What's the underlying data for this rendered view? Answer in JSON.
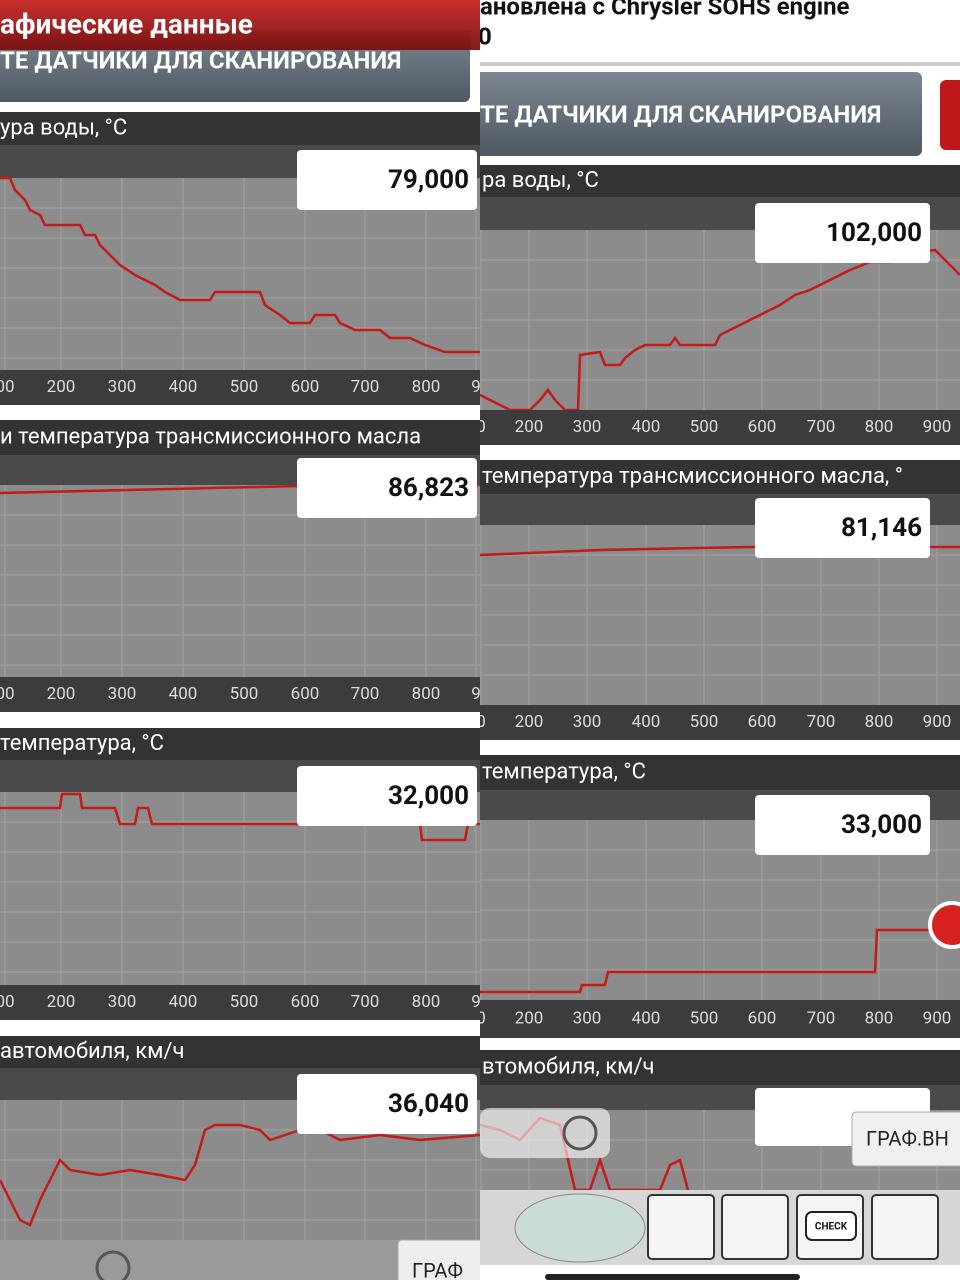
{
  "left": {
    "title": "афические данные",
    "button": "ТЕ ДАТЧИКИ ДЛЯ СКАНИРОВАНИЯ",
    "graphs": [
      {
        "label": "ура воды, °C",
        "value": "79,000",
        "ticks": [
          "00",
          "200",
          "300",
          "400",
          "500",
          "600",
          "700",
          "800",
          "9"
        ]
      },
      {
        "label": "и температура трансмиссионного масла",
        "value": "86,823",
        "ticks": [
          "00",
          "200",
          "300",
          "400",
          "500",
          "600",
          "700",
          "800",
          "9"
        ]
      },
      {
        "label": "температура, °C",
        "value": "32,000",
        "ticks": [
          "00",
          "200",
          "300",
          "400",
          "500",
          "600",
          "700",
          "800",
          "9"
        ]
      },
      {
        "label": "автомобиля, км/ч",
        "value": "36,040"
      }
    ],
    "tab": "ГРАФ"
  },
  "right": {
    "header": [
      "ановлена с Chrysler SOHS engine",
      "0"
    ],
    "button": "ТЕ ДАТЧИКИ ДЛЯ СКАНИРОВАНИЯ",
    "graphs": [
      {
        "label": "ра воды, °C",
        "value": "102,000",
        "ticks": [
          "0",
          "200",
          "300",
          "400",
          "500",
          "600",
          "700",
          "800",
          "900"
        ]
      },
      {
        "label": "температура трансмиссионного масла, °",
        "value": "81,146",
        "ticks": [
          "0",
          "200",
          "300",
          "400",
          "500",
          "600",
          "700",
          "800",
          "900"
        ]
      },
      {
        "label": "температура, °C",
        "value": "33,000",
        "ticks": [
          "0",
          "200",
          "300",
          "400",
          "500",
          "600",
          "700",
          "800",
          "900"
        ]
      },
      {
        "label": "втомобиля, км/ч"
      }
    ],
    "tab": "ГРАФ.ВН",
    "badge": "CHECK"
  }
}
